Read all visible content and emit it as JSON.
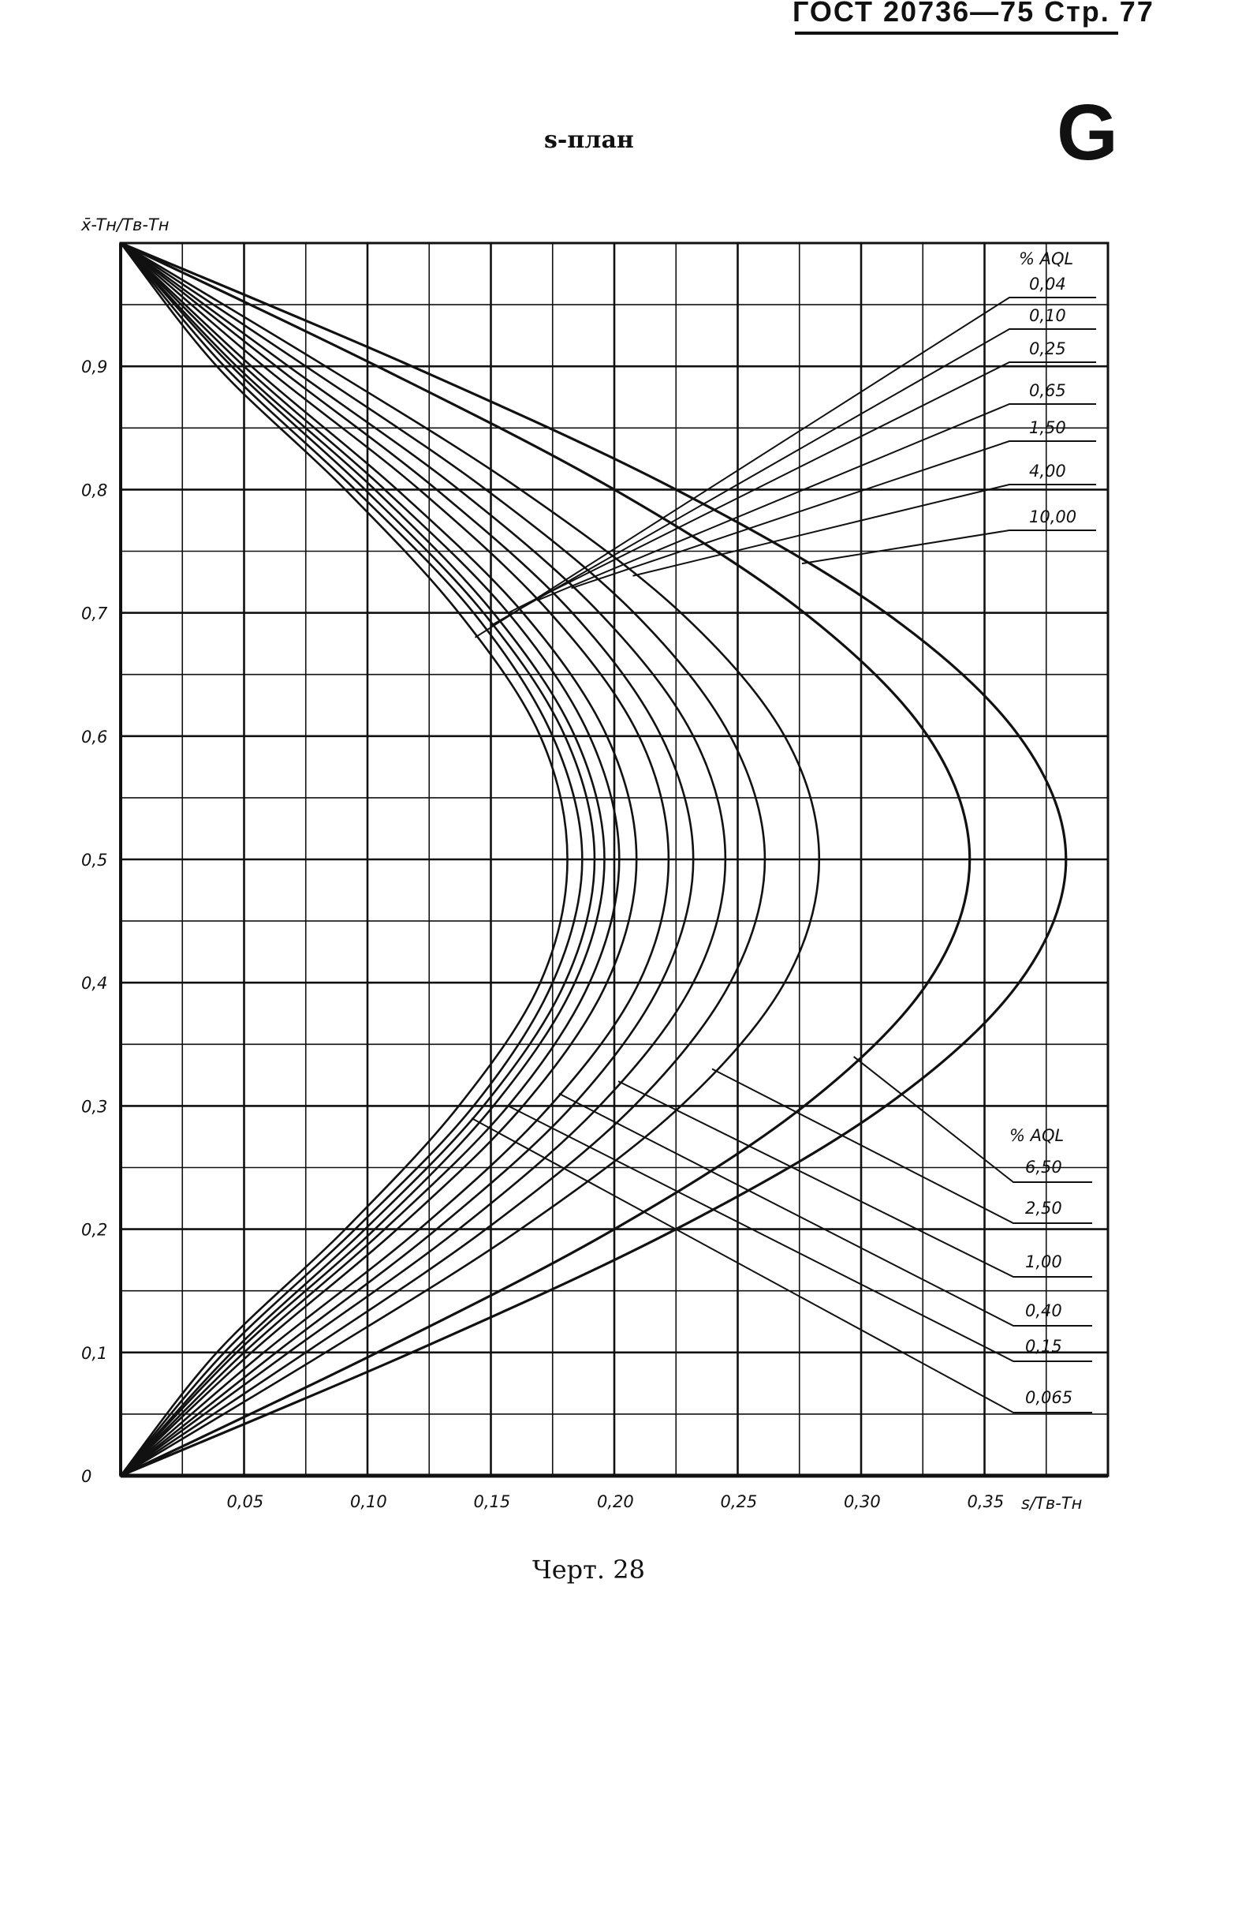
{
  "header": {
    "text": "ГОСТ 20736—75 Стр. 77"
  },
  "title": "s-план",
  "logo_letter": "G",
  "caption": "Черт. 28",
  "chart_data": {
    "type": "line",
    "xlabel": "s/Tв-Tн",
    "ylabel": "x̄-Tн/Tв-Tн",
    "xlim": [
      0,
      0.4
    ],
    "ylim": [
      0,
      1
    ],
    "grid": true,
    "x_ticks": [
      {
        "v": 0.05,
        "label": "0,05"
      },
      {
        "v": 0.1,
        "label": "0,10"
      },
      {
        "v": 0.15,
        "label": "0,15"
      },
      {
        "v": 0.2,
        "label": "0,20"
      },
      {
        "v": 0.25,
        "label": "0,25"
      },
      {
        "v": 0.3,
        "label": "0,30"
      },
      {
        "v": 0.35,
        "label": "0,35"
      }
    ],
    "y_ticks": [
      {
        "v": 0,
        "label": "0"
      },
      {
        "v": 0.1,
        "label": "0,1"
      },
      {
        "v": 0.2,
        "label": "0,2"
      },
      {
        "v": 0.3,
        "label": "0,3"
      },
      {
        "v": 0.4,
        "label": "0,4"
      },
      {
        "v": 0.5,
        "label": "0,5"
      },
      {
        "v": 0.6,
        "label": "0,6"
      },
      {
        "v": 0.7,
        "label": "0,7"
      },
      {
        "v": 0.8,
        "label": "0,8"
      },
      {
        "v": 0.9,
        "label": "0,9"
      }
    ],
    "y": [
      0,
      0.1,
      0.2,
      0.3,
      0.4,
      0.5,
      0.6,
      0.7,
      0.8,
      0.9,
      1.0
    ],
    "curves": [
      [
        0,
        0.039,
        0.091,
        0.137,
        0.17,
        0.181,
        0.17,
        0.137,
        0.091,
        0.039,
        0
      ],
      [
        0,
        0.042,
        0.095,
        0.143,
        0.175,
        0.187,
        0.175,
        0.143,
        0.095,
        0.042,
        0
      ],
      [
        0,
        0.045,
        0.099,
        0.147,
        0.18,
        0.192,
        0.18,
        0.147,
        0.099,
        0.045,
        0
      ],
      [
        0,
        0.047,
        0.103,
        0.151,
        0.184,
        0.196,
        0.184,
        0.151,
        0.103,
        0.047,
        0
      ],
      [
        0,
        0.05,
        0.107,
        0.157,
        0.19,
        0.202,
        0.19,
        0.157,
        0.107,
        0.05,
        0
      ],
      [
        0,
        0.053,
        0.112,
        0.163,
        0.197,
        0.209,
        0.197,
        0.163,
        0.112,
        0.053,
        0
      ],
      [
        0,
        0.058,
        0.121,
        0.174,
        0.21,
        0.222,
        0.21,
        0.174,
        0.121,
        0.058,
        0
      ],
      [
        0,
        0.063,
        0.128,
        0.183,
        0.219,
        0.232,
        0.219,
        0.183,
        0.128,
        0.063,
        0
      ],
      [
        0,
        0.068,
        0.137,
        0.194,
        0.232,
        0.245,
        0.232,
        0.194,
        0.137,
        0.068,
        0
      ],
      [
        0,
        0.075,
        0.148,
        0.208,
        0.247,
        0.261,
        0.247,
        0.208,
        0.148,
        0.075,
        0
      ],
      [
        0,
        0.083,
        0.162,
        0.227,
        0.269,
        0.283,
        0.269,
        0.227,
        0.162,
        0.083,
        0
      ],
      [
        0,
        0.104,
        0.2,
        0.277,
        0.327,
        0.344,
        0.327,
        0.277,
        0.2,
        0.104,
        0
      ],
      [
        0,
        0.118,
        0.225,
        0.31,
        0.364,
        0.383,
        0.364,
        0.31,
        0.225,
        0.118,
        0
      ]
    ],
    "legend_upper": {
      "title": "% AQL",
      "labels": [
        "0,04",
        "0,10",
        "0,25",
        "0,65",
        "1,50",
        "4,00",
        "10,00"
      ]
    },
    "legend_lower": {
      "title": "% AQL",
      "labels": [
        "6,50",
        "2,50",
        "1,00",
        "0,40",
        "0,15",
        "0,065"
      ]
    }
  }
}
